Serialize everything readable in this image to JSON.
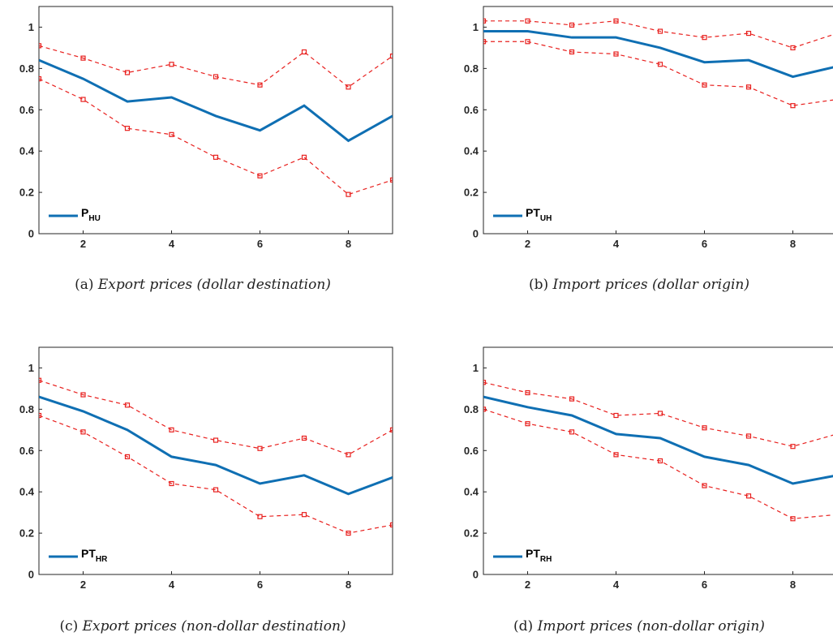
{
  "colors": {
    "main": "#0f6fb3",
    "band": "#e8201e",
    "axis": "#262626"
  },
  "chart_data": [
    {
      "type": "line",
      "panel_label": "(a)",
      "title": "Export prices (dollar destination)",
      "legend": {
        "name": "P",
        "sub": "HU"
      },
      "x": [
        1,
        2,
        3,
        4,
        5,
        6,
        7,
        8,
        9
      ],
      "xlim": [
        1,
        9
      ],
      "ylim": [
        0,
        1.1
      ],
      "xticks": [
        2,
        4,
        6,
        8
      ],
      "yticks": [
        0,
        0.2,
        0.4,
        0.6,
        0.8,
        1
      ],
      "series": [
        {
          "role": "estimate",
          "values": [
            0.84,
            0.75,
            0.64,
            0.66,
            0.57,
            0.5,
            0.62,
            0.45,
            0.57
          ]
        },
        {
          "role": "upper",
          "values": [
            0.91,
            0.85,
            0.78,
            0.82,
            0.76,
            0.72,
            0.88,
            0.71,
            0.86
          ]
        },
        {
          "role": "lower",
          "values": [
            0.75,
            0.65,
            0.51,
            0.48,
            0.37,
            0.28,
            0.37,
            0.19,
            0.26
          ]
        }
      ]
    },
    {
      "type": "line",
      "panel_label": "(b)",
      "title": "Import prices (dollar origin)",
      "legend": {
        "name": "PT",
        "sub": "UH"
      },
      "x": [
        1,
        2,
        3,
        4,
        5,
        6,
        7,
        8,
        9
      ],
      "xlim": [
        1,
        9
      ],
      "ylim": [
        0,
        1.1
      ],
      "xticks": [
        2,
        4,
        6,
        8
      ],
      "yticks": [
        0,
        0.2,
        0.4,
        0.6,
        0.8,
        1
      ],
      "series": [
        {
          "role": "estimate",
          "values": [
            0.98,
            0.98,
            0.95,
            0.95,
            0.9,
            0.83,
            0.84,
            0.76,
            0.81
          ]
        },
        {
          "role": "upper",
          "values": [
            1.03,
            1.03,
            1.01,
            1.03,
            0.98,
            0.95,
            0.97,
            0.9,
            0.97
          ]
        },
        {
          "role": "lower",
          "values": [
            0.93,
            0.93,
            0.88,
            0.87,
            0.82,
            0.72,
            0.71,
            0.62,
            0.65
          ]
        }
      ]
    },
    {
      "type": "line",
      "panel_label": "(c)",
      "title": "Export prices (non-dollar destination)",
      "legend": {
        "name": "PT",
        "sub": "HR"
      },
      "x": [
        1,
        2,
        3,
        4,
        5,
        6,
        7,
        8,
        9
      ],
      "xlim": [
        1,
        9
      ],
      "ylim": [
        0,
        1.1
      ],
      "xticks": [
        2,
        4,
        6,
        8
      ],
      "yticks": [
        0,
        0.2,
        0.4,
        0.6,
        0.8,
        1
      ],
      "series": [
        {
          "role": "estimate",
          "values": [
            0.86,
            0.79,
            0.7,
            0.57,
            0.53,
            0.44,
            0.48,
            0.39,
            0.47
          ]
        },
        {
          "role": "upper",
          "values": [
            0.94,
            0.87,
            0.82,
            0.7,
            0.65,
            0.61,
            0.66,
            0.58,
            0.7
          ]
        },
        {
          "role": "lower",
          "values": [
            0.77,
            0.69,
            0.57,
            0.44,
            0.41,
            0.28,
            0.29,
            0.2,
            0.24
          ]
        }
      ]
    },
    {
      "type": "line",
      "panel_label": "(d)",
      "title": "Import prices (non-dollar origin)",
      "legend": {
        "name": "PT",
        "sub": "RH"
      },
      "x": [
        1,
        2,
        3,
        4,
        5,
        6,
        7,
        8,
        9
      ],
      "xlim": [
        1,
        9
      ],
      "ylim": [
        0,
        1.1
      ],
      "xticks": [
        2,
        4,
        6,
        8
      ],
      "yticks": [
        0,
        0.2,
        0.4,
        0.6,
        0.8,
        1
      ],
      "series": [
        {
          "role": "estimate",
          "values": [
            0.86,
            0.81,
            0.77,
            0.68,
            0.66,
            0.57,
            0.53,
            0.44,
            0.48
          ]
        },
        {
          "role": "upper",
          "values": [
            0.93,
            0.88,
            0.85,
            0.77,
            0.78,
            0.71,
            0.67,
            0.62,
            0.68
          ]
        },
        {
          "role": "lower",
          "values": [
            0.8,
            0.73,
            0.69,
            0.58,
            0.55,
            0.43,
            0.38,
            0.27,
            0.29
          ]
        }
      ]
    }
  ]
}
